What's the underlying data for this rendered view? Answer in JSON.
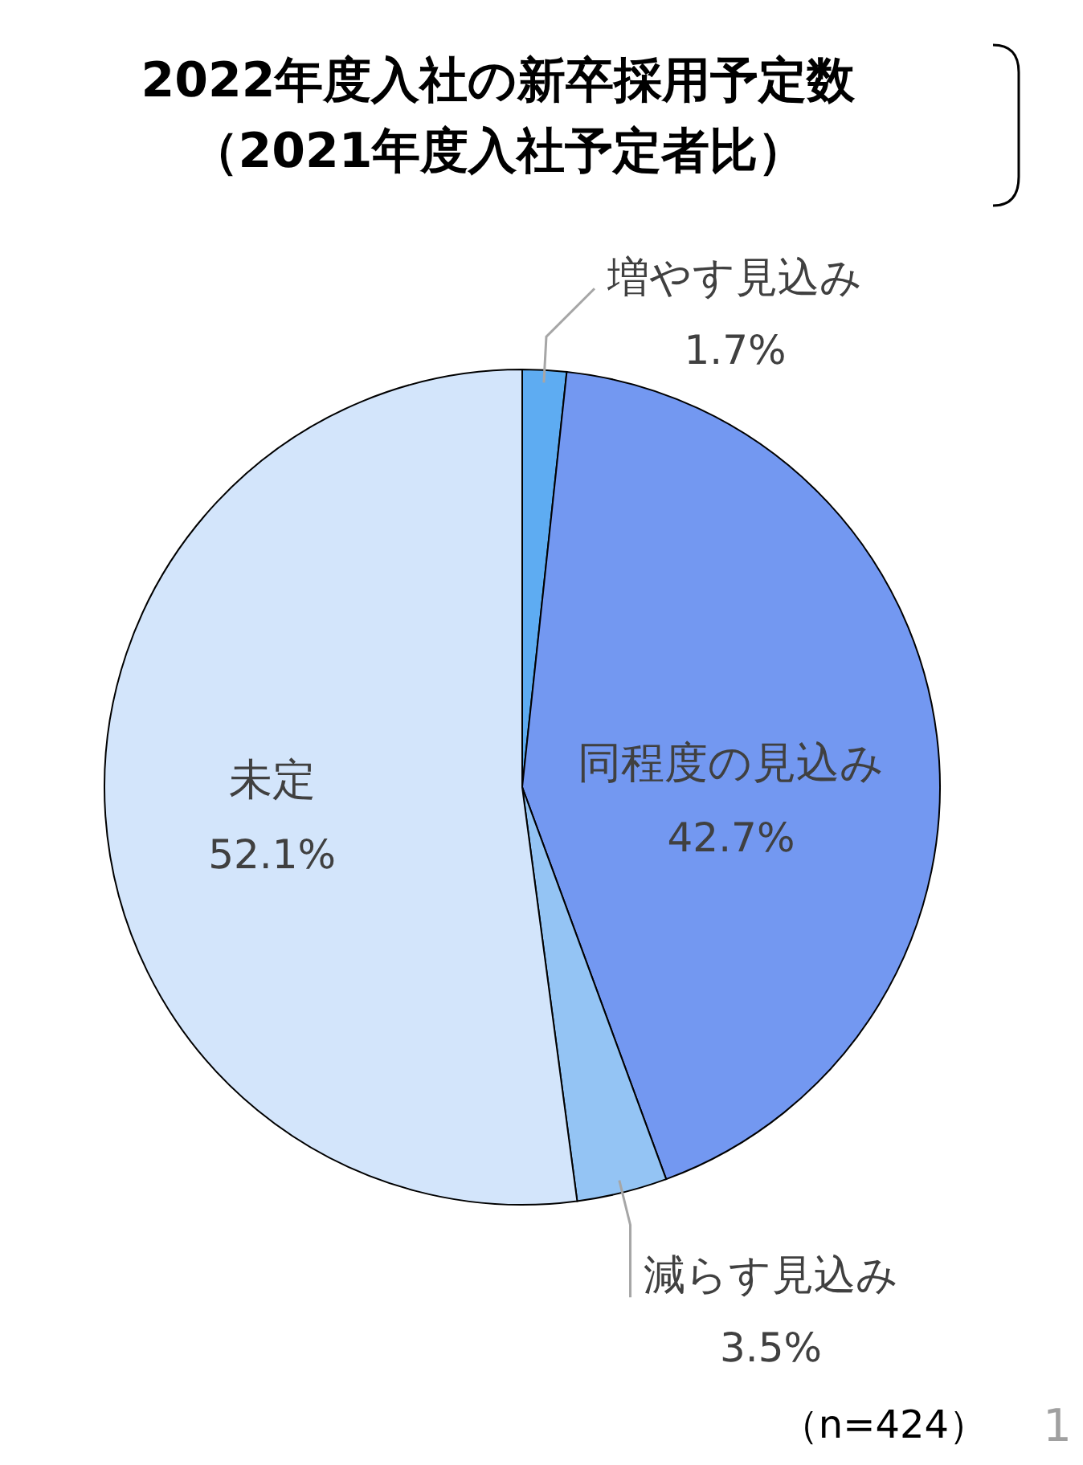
{
  "chart_data": {
    "type": "pie",
    "title": "2022年度入社の新卒採用予定数",
    "subtitle": "（2021年度入社予定者比）",
    "value_labels": [
      "1.7%",
      "42.7%",
      "3.5%",
      "52.1%"
    ],
    "categories": [
      "増やす見込み",
      "同程度の見込み",
      "減らす見込み",
      "未定"
    ],
    "values": [
      1.7,
      42.7,
      3.5,
      52.1
    ],
    "colors": [
      "#5eacf2",
      "#7398f1",
      "#94c4f4",
      "#d3e5fb"
    ],
    "annotations": [
      "（n=424）",
      "1"
    ]
  }
}
